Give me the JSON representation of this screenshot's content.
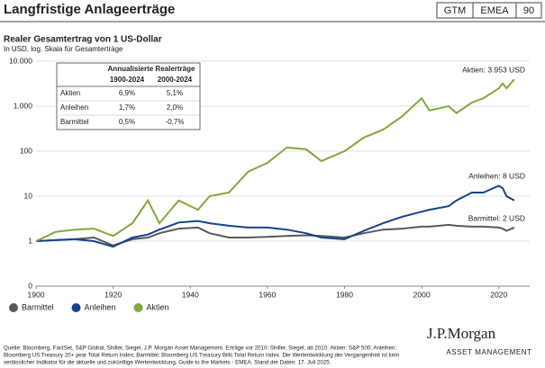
{
  "header": {
    "title": "Langfristige Anlageerträge",
    "tags": [
      "GTM",
      "EMEA",
      "90"
    ]
  },
  "chart_data": {
    "type": "line",
    "title": "Realer Gesamtertrag von 1 US-Dollar",
    "subtitle": "In USD, log. Skala für Gesamterträge",
    "log_y": true,
    "grid": true,
    "legend": "bottom-left",
    "x": [
      1900,
      1905,
      1910,
      1915,
      1920,
      1925,
      1929,
      1932,
      1937,
      1942,
      1945,
      1950,
      1955,
      1960,
      1965,
      1970,
      1974,
      1980,
      1985,
      1990,
      1995,
      2000,
      2002,
      2007,
      2009,
      2013,
      2016,
      2020,
      2021,
      2022,
      2024
    ],
    "xlim": [
      1900,
      2028
    ],
    "xticks": [
      1900,
      1920,
      1940,
      1960,
      1980,
      2000,
      2020
    ],
    "ylim": [
      0.1,
      10000
    ],
    "yticks": [
      {
        "value": 0.1,
        "label": "0"
      },
      1,
      10,
      100,
      {
        "value": 1000,
        "label": "1.000"
      },
      {
        "value": 10000,
        "label": "10.000"
      }
    ],
    "series": [
      {
        "name": "Barmittel",
        "color": "#595959",
        "values": [
          1,
          1.05,
          1.1,
          1.2,
          0.8,
          1.1,
          1.2,
          1.5,
          1.9,
          2.0,
          1.5,
          1.2,
          1.2,
          1.25,
          1.3,
          1.35,
          1.3,
          1.2,
          1.5,
          1.8,
          1.9,
          2.1,
          2.1,
          2.3,
          2.2,
          2.1,
          2.1,
          2.0,
          1.9,
          1.7,
          2.0
        ]
      },
      {
        "name": "Anleihen",
        "color": "#17428c",
        "values": [
          1,
          1.05,
          1.1,
          1.0,
          0.75,
          1.2,
          1.4,
          1.8,
          2.6,
          2.8,
          2.5,
          2.2,
          2.0,
          2.0,
          1.8,
          1.5,
          1.2,
          1.1,
          1.7,
          2.5,
          3.5,
          4.5,
          5,
          6,
          8,
          12,
          12,
          17,
          15,
          10,
          8
        ]
      },
      {
        "name": "Aktien",
        "color": "#82a83a",
        "values": [
          1,
          1.6,
          1.8,
          1.9,
          1.3,
          2.5,
          8,
          2.5,
          8,
          5,
          10,
          12,
          35,
          55,
          120,
          110,
          60,
          100,
          200,
          300,
          600,
          1500,
          800,
          1000,
          700,
          1200,
          1500,
          2500,
          3200,
          2500,
          3953
        ]
      }
    ],
    "annotations": [
      "Aktien: 3.953 USD",
      "Anleihen: 8 USD",
      "Barmittel: 2 USD"
    ],
    "inset": {
      "title": "Annualisierte Realerträge",
      "columns": [
        "1900-2024",
        "2000-2024"
      ],
      "rows": [
        [
          "Aktien",
          "6,9%",
          "5,1%"
        ],
        [
          "Anleihen",
          "1,7%",
          "2,0%"
        ],
        [
          "Barmittel",
          "0,5%",
          "-0,7%"
        ]
      ]
    }
  },
  "footer": {
    "source": [
      "Quelle: Bloomberg, FactSet, S&P Global, Shiller, Siegel, J.P. Morgan Asset Management. Erträge vor 2010: Shiller, Siegel; ab 2010: Aktien: S&P 500; Anleihen:",
      "Bloomberg US Treasury 20+ year Total Return Index; Barmittel: Bloomberg US Treasury Bills Total Return Index. Die Wertentwicklung der Vergangenheit ist kein",
      "verlässlicher Indikator für die aktuelle und zukünftige Wertentwicklung. Guide to the Markets - EMEA. Stand der Daten: 17. Juli 2025."
    ],
    "logo": "J.P.Morgan",
    "logo_sub": "ASSET MANAGEMENT"
  }
}
